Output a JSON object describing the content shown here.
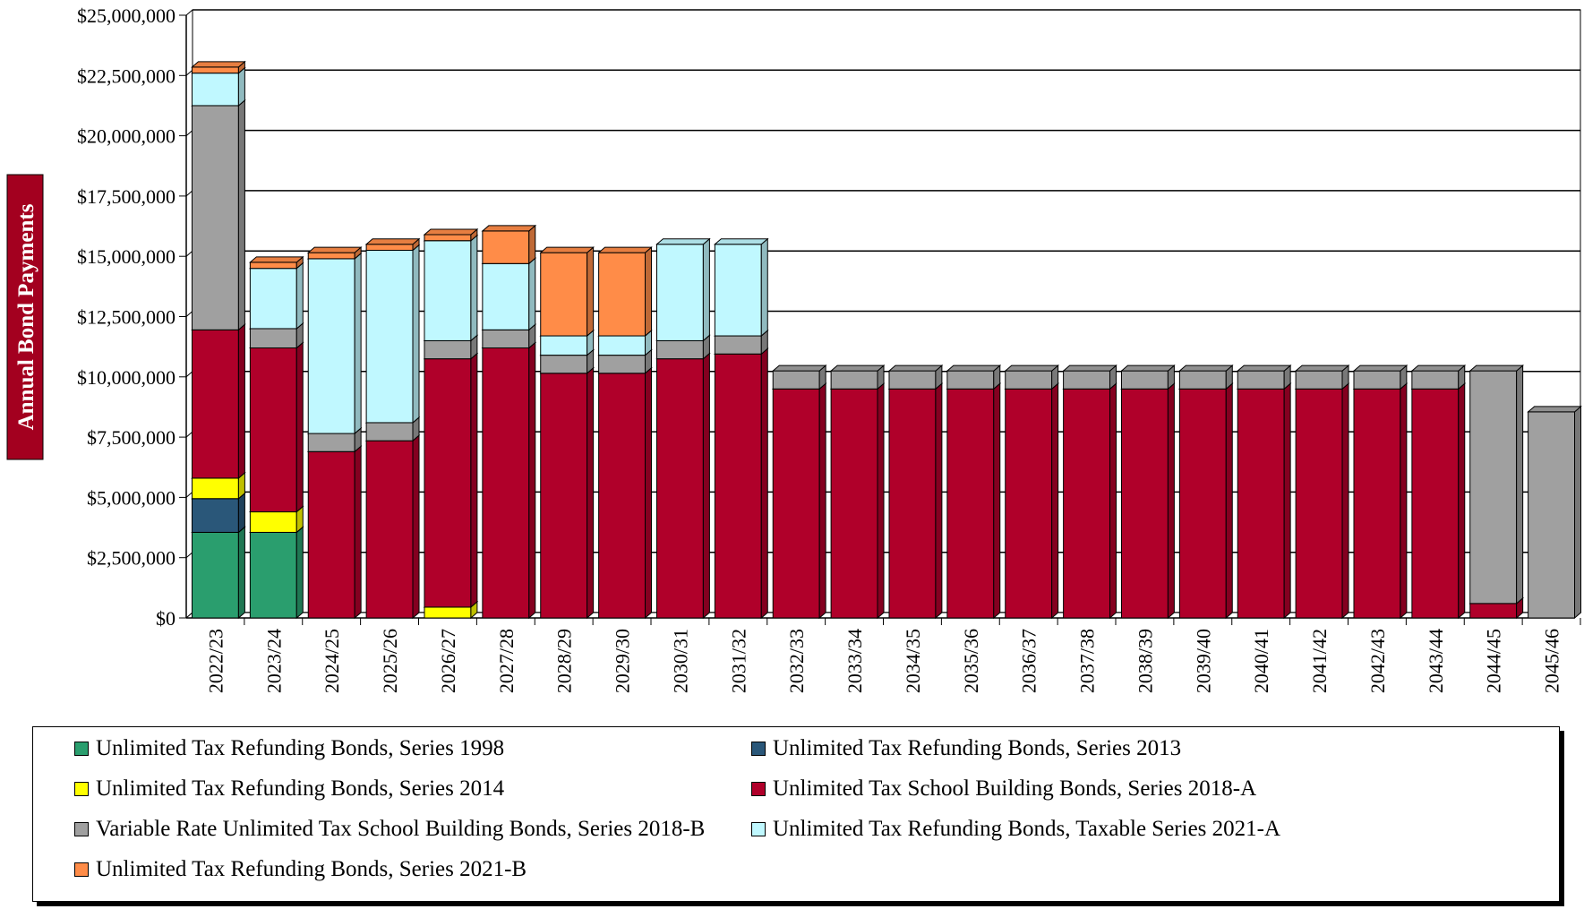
{
  "chart_data": {
    "type": "bar",
    "stacked": true,
    "ylabel": "Annual Bond Payments",
    "xlabel": "",
    "ylim": [
      0,
      25000000
    ],
    "yticks": [
      "$0",
      "$2,500,000",
      "$5,000,000",
      "$7,500,000",
      "$10,000,000",
      "$12,500,000",
      "$15,000,000",
      "$17,500,000",
      "$20,000,000",
      "$22,500,000",
      "$25,000,000"
    ],
    "grid": true,
    "legend_position": "bottom",
    "categories": [
      "2022/23",
      "2023/24",
      "2024/25",
      "2025/26",
      "2026/27",
      "2027/28",
      "2028/29",
      "2029/30",
      "2030/31",
      "2031/32",
      "2032/33",
      "2033/34",
      "2034/35",
      "2035/36",
      "2036/37",
      "2037/38",
      "2038/39",
      "2039/40",
      "2040/41",
      "2041/42",
      "2042/43",
      "2043/44",
      "2044/45",
      "2045/46"
    ],
    "series": [
      {
        "name": "Unlimited Tax Refunding Bonds, Series 1998",
        "color": "#2a9e6e",
        "values": [
          3550000,
          3550000,
          0,
          0,
          0,
          0,
          0,
          0,
          0,
          0,
          0,
          0,
          0,
          0,
          0,
          0,
          0,
          0,
          0,
          0,
          0,
          0,
          0,
          0
        ]
      },
      {
        "name": "Unlimited Tax Refunding Bonds, Series 2013",
        "color": "#2a5779",
        "values": [
          1400000,
          0,
          0,
          0,
          0,
          0,
          0,
          0,
          0,
          0,
          0,
          0,
          0,
          0,
          0,
          0,
          0,
          0,
          0,
          0,
          0,
          0,
          0,
          0
        ]
      },
      {
        "name": "Unlimited Tax Refunding Bonds, Series 2014",
        "color": "#ffff00",
        "values": [
          850000,
          850000,
          0,
          0,
          450000,
          0,
          0,
          0,
          0,
          0,
          0,
          0,
          0,
          0,
          0,
          0,
          0,
          0,
          0,
          0,
          0,
          0,
          0,
          0
        ]
      },
      {
        "name": "Unlimited Tax School Building Bonds, Series 2018-A",
        "color": "#b0002a",
        "values": [
          6150000,
          6800000,
          6900000,
          7350000,
          10300000,
          11200000,
          10150000,
          10150000,
          10750000,
          10950000,
          9500000,
          9500000,
          9500000,
          9500000,
          9500000,
          9500000,
          9500000,
          9500000,
          9500000,
          9500000,
          9500000,
          9500000,
          600000,
          0
        ]
      },
      {
        "name": "Variable Rate Unlimited Tax School Building Bonds, Series 2018-B",
        "color": "#a0a0a0",
        "values": [
          9300000,
          800000,
          750000,
          750000,
          750000,
          750000,
          750000,
          750000,
          750000,
          750000,
          750000,
          750000,
          750000,
          750000,
          750000,
          750000,
          750000,
          750000,
          750000,
          750000,
          750000,
          750000,
          9650000,
          8550000
        ]
      },
      {
        "name": "Unlimited Tax Refunding Bonds, Taxable Series 2021-A",
        "color": "#c0f8ff",
        "values": [
          1350000,
          2500000,
          7250000,
          7150000,
          4150000,
          2750000,
          800000,
          800000,
          4000000,
          3800000,
          0,
          0,
          0,
          0,
          0,
          0,
          0,
          0,
          0,
          0,
          0,
          0,
          0,
          0
        ]
      },
      {
        "name": "Unlimited Tax Refunding Bonds, Series 2021-B",
        "color": "#ff8c48",
        "values": [
          250000,
          250000,
          250000,
          250000,
          250000,
          1350000,
          3450000,
          3450000,
          0,
          0,
          0,
          0,
          0,
          0,
          0,
          0,
          0,
          0,
          0,
          0,
          0,
          0,
          0,
          0
        ]
      }
    ]
  }
}
